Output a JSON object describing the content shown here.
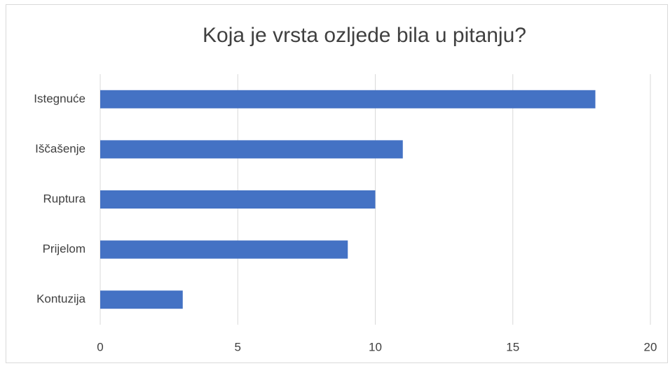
{
  "chart_data": {
    "type": "bar",
    "orientation": "horizontal",
    "title": "Koja je vrsta ozljede bila u pitanju?",
    "categories": [
      "Istegnuće",
      "Iščašenje",
      "Ruptura",
      "Prijelom",
      "Kontuzija"
    ],
    "values": [
      18,
      11,
      10,
      9,
      3
    ],
    "color": "#4472c4",
    "xlim": [
      0,
      20
    ],
    "xticks": [
      0,
      5,
      10,
      15,
      20
    ],
    "grid": true
  }
}
